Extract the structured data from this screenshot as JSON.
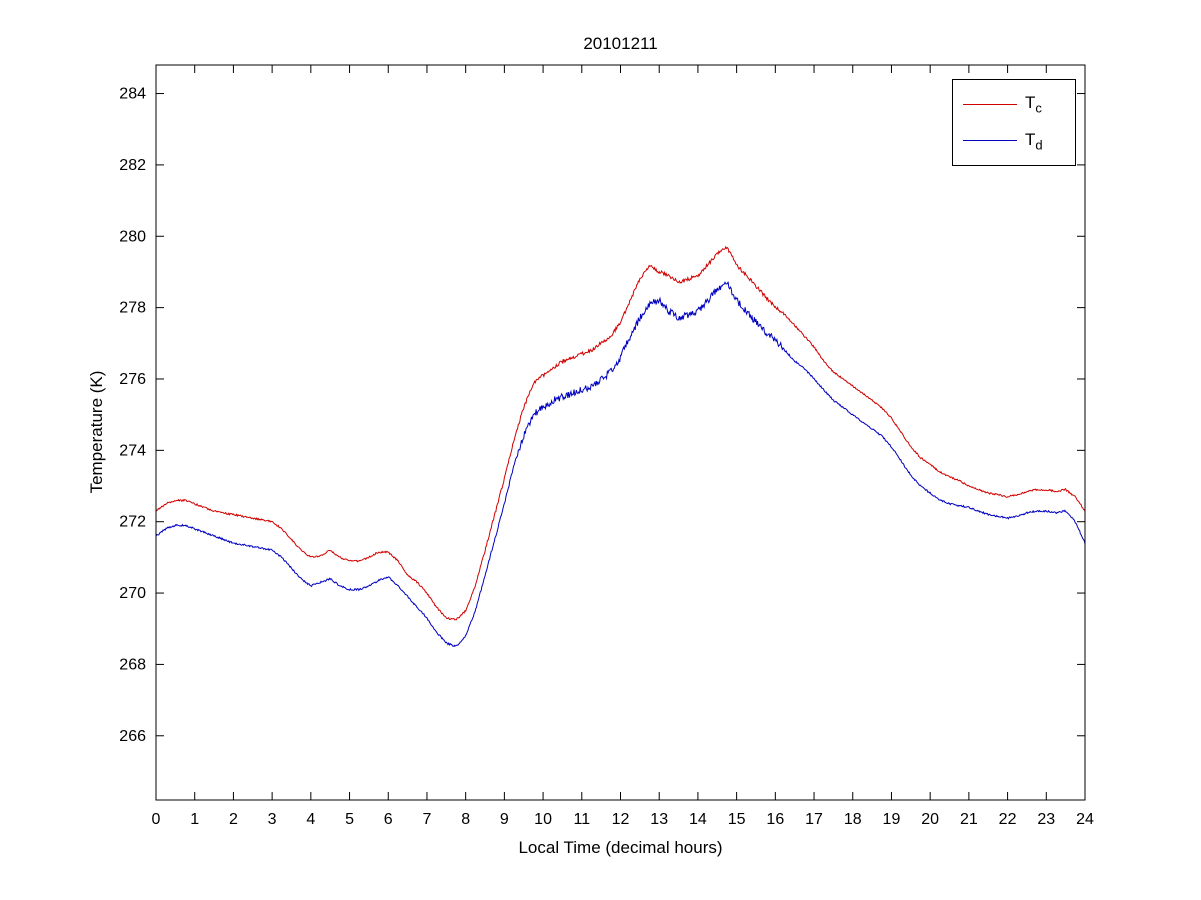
{
  "chart_data": {
    "type": "line",
    "title": "20101211",
    "xlabel": "Local Time (decimal hours)",
    "ylabel": "Temperature (K)",
    "xlim": [
      0,
      24
    ],
    "ylim": [
      264.2,
      284.8
    ],
    "xticks": [
      0,
      1,
      2,
      3,
      4,
      5,
      6,
      7,
      8,
      9,
      10,
      11,
      12,
      13,
      14,
      15,
      16,
      17,
      18,
      19,
      20,
      21,
      22,
      23,
      24
    ],
    "yticks": [
      266,
      268,
      270,
      272,
      274,
      276,
      278,
      280,
      282,
      284
    ],
    "grid": false,
    "axis_color": "#000000",
    "background": "#ffffff",
    "legend": {
      "position": "top-right",
      "entries": [
        {
          "label_base": "T",
          "label_sub": "c",
          "color": "#d10000"
        },
        {
          "label_base": "T",
          "label_sub": "d",
          "color": "#0000c0"
        }
      ]
    },
    "x": [
      0,
      0.25,
      0.5,
      0.75,
      1,
      1.25,
      1.5,
      1.75,
      2,
      2.25,
      2.5,
      2.75,
      3,
      3.25,
      3.5,
      3.75,
      4,
      4.25,
      4.5,
      4.75,
      5,
      5.25,
      5.5,
      5.75,
      6,
      6.25,
      6.5,
      6.75,
      7,
      7.25,
      7.5,
      7.75,
      8,
      8.25,
      8.5,
      8.75,
      9,
      9.25,
      9.5,
      9.75,
      10,
      10.25,
      10.5,
      10.75,
      11,
      11.25,
      11.5,
      11.75,
      12,
      12.25,
      12.5,
      12.75,
      13,
      13.25,
      13.5,
      13.75,
      14,
      14.25,
      14.5,
      14.75,
      15,
      15.25,
      15.5,
      15.75,
      16,
      16.25,
      16.5,
      16.75,
      17,
      17.25,
      17.5,
      17.75,
      18,
      18.25,
      18.5,
      18.75,
      19,
      19.25,
      19.5,
      19.75,
      20,
      20.25,
      20.5,
      20.75,
      21,
      21.25,
      21.5,
      21.75,
      22,
      22.25,
      22.5,
      22.75,
      23,
      23.25,
      23.5,
      23.75,
      24
    ],
    "series": [
      {
        "name": "Tc",
        "color": "#d10000",
        "values": [
          272.3,
          272.5,
          272.6,
          272.6,
          272.5,
          272.4,
          272.3,
          272.25,
          272.2,
          272.15,
          272.1,
          272.05,
          272.0,
          271.8,
          271.5,
          271.2,
          271.0,
          271.05,
          271.2,
          271.0,
          270.9,
          270.9,
          271.0,
          271.15,
          271.15,
          270.9,
          270.5,
          270.3,
          270.0,
          269.6,
          269.3,
          269.25,
          269.5,
          270.2,
          271.2,
          272.2,
          273.2,
          274.3,
          275.2,
          275.9,
          276.1,
          276.3,
          276.5,
          276.6,
          276.7,
          276.8,
          277.0,
          277.2,
          277.6,
          278.2,
          278.8,
          279.2,
          279.0,
          278.9,
          278.7,
          278.8,
          278.9,
          279.2,
          279.5,
          279.7,
          279.2,
          278.9,
          278.6,
          278.3,
          278.0,
          277.8,
          277.5,
          277.2,
          276.9,
          276.5,
          276.2,
          276.0,
          275.8,
          275.6,
          275.4,
          275.2,
          274.9,
          274.5,
          274.1,
          273.8,
          273.6,
          273.4,
          273.25,
          273.15,
          273.0,
          272.9,
          272.8,
          272.75,
          272.7,
          272.75,
          272.85,
          272.9,
          272.9,
          272.85,
          272.9,
          272.7,
          272.3
        ]
      },
      {
        "name": "Td",
        "color": "#0000c0",
        "values": [
          271.6,
          271.8,
          271.9,
          271.9,
          271.8,
          271.7,
          271.6,
          271.5,
          271.4,
          271.35,
          271.3,
          271.25,
          271.2,
          271.0,
          270.7,
          270.4,
          270.2,
          270.3,
          270.4,
          270.2,
          270.1,
          270.1,
          270.2,
          270.35,
          270.45,
          270.2,
          269.9,
          269.6,
          269.3,
          268.9,
          268.6,
          268.5,
          268.8,
          269.5,
          270.5,
          271.5,
          272.5,
          273.6,
          274.4,
          275.0,
          275.2,
          275.4,
          275.5,
          275.6,
          275.7,
          275.8,
          276.0,
          276.2,
          276.6,
          277.2,
          277.7,
          278.1,
          278.2,
          277.9,
          277.7,
          277.8,
          277.9,
          278.2,
          278.5,
          278.7,
          278.2,
          277.9,
          277.6,
          277.3,
          277.1,
          276.8,
          276.5,
          276.3,
          276.0,
          275.7,
          275.4,
          275.2,
          275.0,
          274.8,
          274.6,
          274.4,
          274.1,
          273.7,
          273.3,
          273.0,
          272.8,
          272.6,
          272.5,
          272.45,
          272.4,
          272.3,
          272.2,
          272.15,
          272.1,
          272.15,
          272.25,
          272.3,
          272.3,
          272.25,
          272.3,
          272.0,
          271.4
        ]
      }
    ]
  }
}
